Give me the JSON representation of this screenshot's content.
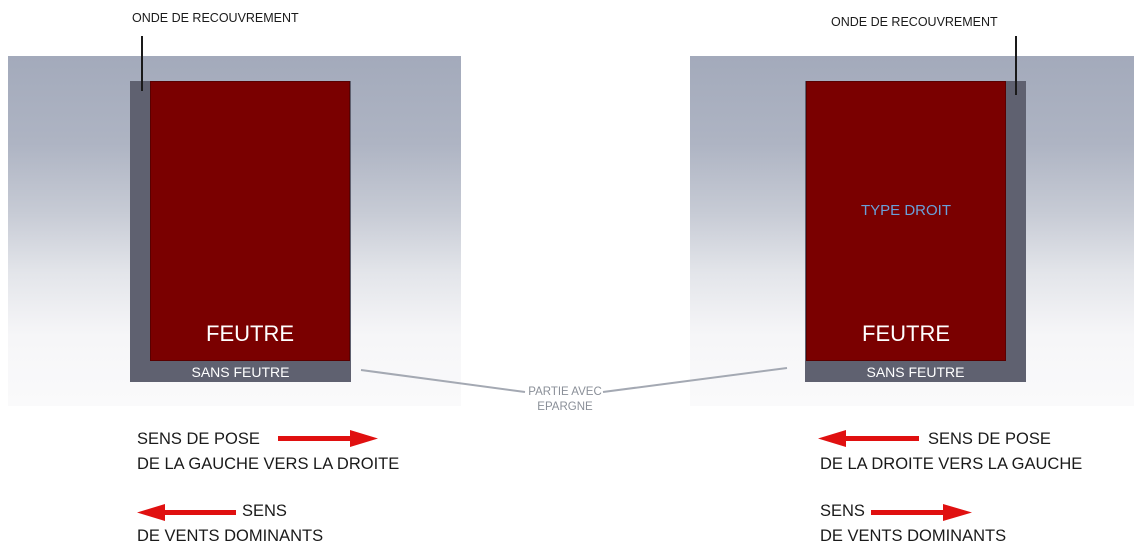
{
  "left_diagram": {
    "overlap_wave_label": "ONDE DE RECOUVREMENT",
    "felt_label": "FEUTRE",
    "no_felt_label": "SANS FEUTRE",
    "laying_direction": "SENS DE POSE",
    "laying_direction_detail": "DE LA GAUCHE VERS LA DROITE",
    "wind_label": "SENS",
    "wind_label_detail": "DE VENTS DOMINANTS"
  },
  "right_diagram": {
    "overlap_wave_label": "ONDE DE RECOUVREMENT",
    "type_label": "TYPE DROIT",
    "felt_label": "FEUTRE",
    "no_felt_label": "SANS FEUTRE",
    "laying_direction": "SENS DE POSE",
    "laying_direction_detail": "DE LA DROITE VERS LA GAUCHE",
    "wind_label": "SENS",
    "wind_label_detail": "DE VENTS DOMINANTS"
  },
  "shared": {
    "spared_part_line1": "PARTIE AVEC",
    "spared_part_line2": "EPARGNE"
  },
  "colors": {
    "felt": "#7a0000",
    "sheet": "#5f6170",
    "arrow": "#e01010",
    "callout_line": "#a4a9b3"
  }
}
